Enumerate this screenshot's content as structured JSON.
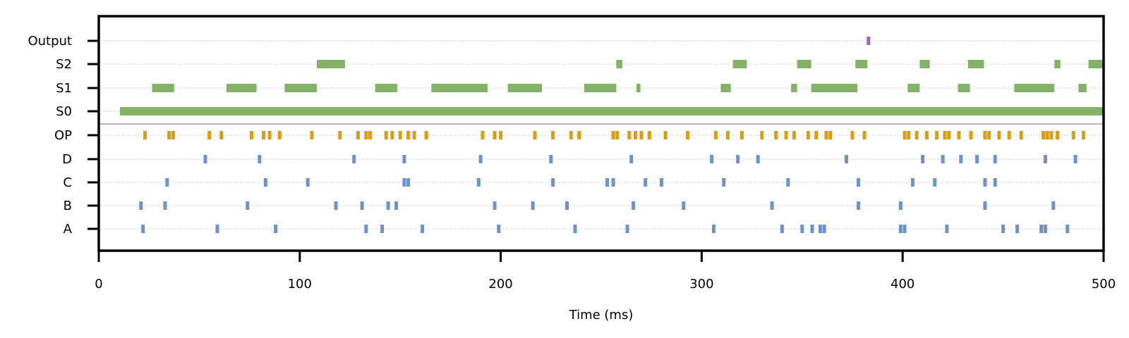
{
  "chart_data": {
    "type": "raster",
    "xlabel": "Time (ms)",
    "xlim": [
      0,
      500
    ],
    "xticks": [
      "0",
      "100",
      "200",
      "300",
      "400",
      "500"
    ],
    "rows": [
      "A",
      "B",
      "C",
      "D",
      "OP",
      "S0",
      "S1",
      "S2",
      "Output"
    ],
    "separator_color": "#b191c3",
    "series": [
      {
        "name": "A",
        "kind": "spikes",
        "color": "#7092c4",
        "times": [
          22,
          59,
          88,
          133,
          141,
          161,
          199,
          237,
          263,
          306,
          340,
          350,
          355,
          359,
          361,
          399,
          401,
          422,
          450,
          457,
          469,
          471,
          482
        ]
      },
      {
        "name": "B",
        "kind": "spikes",
        "color": "#7092c4",
        "times": [
          21,
          33,
          74,
          118,
          131,
          144,
          148,
          197,
          216,
          233,
          266,
          291,
          335,
          378,
          399,
          441,
          475
        ]
      },
      {
        "name": "C",
        "kind": "spikes",
        "color": "#7092c4",
        "times": [
          34,
          83,
          104,
          152,
          154,
          189,
          226,
          253,
          256,
          272,
          280,
          311,
          343,
          378,
          405,
          416,
          441,
          446
        ]
      },
      {
        "name": "D",
        "kind": "spikes",
        "color": "#7092c4",
        "times": [
          53,
          80,
          127,
          152,
          190,
          225,
          265,
          305,
          318,
          328,
          372,
          410,
          420,
          429,
          437,
          446,
          471,
          486
        ]
      },
      {
        "name": "OP",
        "kind": "spikes",
        "color": "#d89f14",
        "times": [
          23,
          35,
          37,
          55,
          61,
          76,
          82,
          85,
          90,
          106,
          120,
          129,
          133,
          135,
          143,
          146,
          150,
          154,
          157,
          163,
          191,
          197,
          200,
          217,
          226,
          235,
          239,
          256,
          258,
          264,
          267,
          270,
          274,
          282,
          293,
          307,
          313,
          320,
          330,
          337,
          342,
          346,
          353,
          357,
          362,
          364,
          375,
          381,
          401,
          403,
          407,
          412,
          417,
          421,
          423,
          428,
          434,
          441,
          443,
          448,
          453,
          459,
          470,
          472,
          474,
          477,
          485,
          490
        ]
      },
      {
        "name": "S0",
        "kind": "segments",
        "color": "#82b366",
        "segments": [
          [
            10.5,
            500
          ]
        ]
      },
      {
        "name": "S1",
        "kind": "segments",
        "color": "#82b366",
        "segments": [
          [
            26.5,
            37.5
          ],
          [
            63.5,
            78.5
          ],
          [
            92.5,
            108.5
          ],
          [
            137.5,
            148.5
          ],
          [
            165.5,
            193.5
          ],
          [
            203.5,
            220.5
          ],
          [
            241.5,
            257.5
          ],
          [
            267.5,
            269.5
          ],
          [
            309.5,
            314.5
          ],
          [
            344.5,
            347.5
          ],
          [
            354.5,
            377.5
          ],
          [
            402.5,
            408.5
          ],
          [
            427.5,
            433.5
          ],
          [
            455.5,
            475.5
          ],
          [
            487.5,
            491.5
          ]
        ]
      },
      {
        "name": "S2",
        "kind": "segments",
        "color": "#82b366",
        "segments": [
          [
            108.5,
            122.5
          ],
          [
            257.5,
            260.5
          ],
          [
            315.5,
            322.5
          ],
          [
            347.5,
            354.5
          ],
          [
            376.5,
            382.5
          ],
          [
            408.5,
            413.5
          ],
          [
            432.5,
            440.5
          ],
          [
            475.5,
            478.5
          ],
          [
            492.5,
            500
          ]
        ]
      },
      {
        "name": "Output",
        "kind": "spikes",
        "color": "#9b69ad",
        "times": [
          383
        ]
      }
    ]
  }
}
